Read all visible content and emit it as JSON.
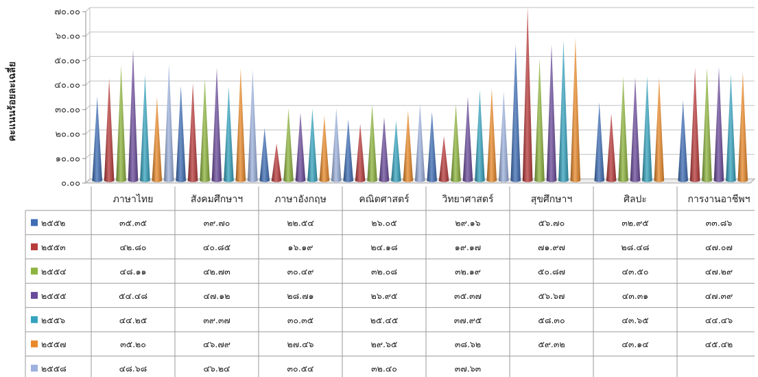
{
  "chart_data": {
    "type": "bar",
    "ylabel": "คะแนนร้อยละเฉลี่ย",
    "ylim": [
      0,
      70
    ],
    "y_tick_labels": [
      "๐.๐๐",
      "๑๐.๐๐",
      "๒๐.๐๐",
      "๓๐.๐๐",
      "๔๐.๐๐",
      "๕๐.๐๐",
      "๖๐.๐๐",
      "๗๐.๐๐"
    ],
    "grid": true,
    "legend": "table-left",
    "categories": [
      "ภาษาไทย",
      "สังคมศึกษาฯ",
      "ภาษาอังกฤษ",
      "คณิตศาสตร์",
      "วิทยาศาสตร์",
      "สุขศึกษาฯ",
      "ศิลปะ",
      "การงานอาชีพฯ"
    ],
    "series": [
      {
        "name": "๒๕๕๒",
        "color": "#3e6db5",
        "values": [
          35.35,
          39.7,
          22.54,
          26.05,
          29.16,
          56.7,
          32.95,
          33.86
        ],
        "labels": [
          "๓๕.๓๕",
          "๓๙.๗๐",
          "๒๒.๕๔",
          "๒๖.๐๕",
          "๒๙.๑๖",
          "๕๖.๗๐",
          "๓๒.๙๕",
          "๓๓.๘๖"
        ]
      },
      {
        "name": "๒๕๕๓",
        "color": "#b83a3a",
        "values": [
          42.8,
          40.85,
          16.19,
          24.18,
          19.17,
          71.97,
          28.48,
          47.07
        ],
        "labels": [
          "๔๒.๘๐",
          "๔๐.๘๕",
          "๑๖.๑๙",
          "๒๔.๑๘",
          "๑๙.๑๗",
          "๗๑.๙๗",
          "๒๘.๔๘",
          "๔๗.๐๗"
        ]
      },
      {
        "name": "๒๕๕๔",
        "color": "#8db43e",
        "values": [
          48.11,
          42.73,
          30.49,
          32.08,
          32.19,
          50.87,
          43.5,
          47.29
        ],
        "labels": [
          "๔๘.๑๑",
          "๔๒.๗๓",
          "๓๐.๔๙",
          "๓๒.๐๘",
          "๓๒.๑๙",
          "๕๐.๘๗",
          "๔๓.๕๐",
          "๔๗.๒๙"
        ]
      },
      {
        "name": "๒๕๕๕",
        "color": "#6a4a9a",
        "values": [
          54.48,
          47.12,
          28.71,
          26.95,
          35.37,
          56.67,
          43.31,
          47.39
        ],
        "labels": [
          "๕๔.๔๘",
          "๔๗.๑๒",
          "๒๘.๗๑",
          "๒๖.๙๕",
          "๓๕.๓๗",
          "๕๖.๖๗",
          "๔๓.๓๑",
          "๔๗.๓๙"
        ]
      },
      {
        "name": "๒๕๕๖",
        "color": "#35a3bf",
        "values": [
          44.25,
          39.37,
          30.35,
          25.45,
          37.95,
          58.3,
          43.65,
          44.46
        ],
        "labels": [
          "๔๔.๒๕",
          "๓๙.๓๗",
          "๓๐.๓๕",
          "๒๕.๔๕",
          "๓๗.๙๕",
          "๕๘.๓๐",
          "๔๓.๖๕",
          "๔๔.๔๖"
        ]
      },
      {
        "name": "๒๕๕๗",
        "color": "#e9892a",
        "values": [
          35.2,
          46.79,
          27.46,
          29.65,
          38.62,
          59.32,
          43.14,
          45.42
        ],
        "labels": [
          "๓๕.๒๐",
          "๔๖.๗๙",
          "๒๗.๔๖",
          "๒๙.๖๕",
          "๓๘.๖๒",
          "๕๙.๓๒",
          "๔๓.๑๔",
          "๔๕.๔๒"
        ]
      },
      {
        "name": "๒๕๕๘",
        "color": "#9db2de",
        "values": [
          48.68,
          46.24,
          30.54,
          32.4,
          37.63,
          null,
          null,
          null
        ],
        "labels": [
          "๔๘.๖๘",
          "๔๖.๒๔",
          "๓๐.๕๔",
          "๓๒.๔๐",
          "๓๗.๖๓",
          "",
          "",
          ""
        ]
      }
    ]
  }
}
